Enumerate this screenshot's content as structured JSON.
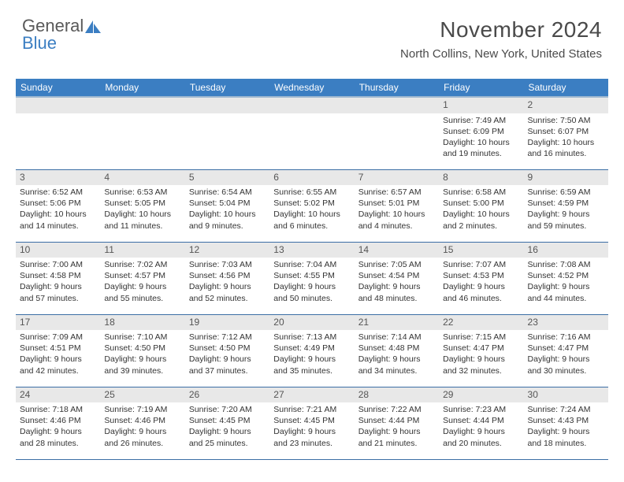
{
  "logo": {
    "text1": "General",
    "text2": "Blue",
    "icon_color": "#3b7ec2"
  },
  "title": "November 2024",
  "subtitle": "North Collins, New York, United States",
  "colors": {
    "header_bg": "#3b7ec2",
    "header_text": "#ffffff",
    "daynum_bg": "#e8e8e8",
    "row_border": "#3b6ea5",
    "subheader_border": "#9cb6cf"
  },
  "fonts": {
    "title_size": 28,
    "subtitle_size": 15,
    "th_size": 12,
    "daynum_size": 12,
    "body_size": 10.5
  },
  "day_headers": [
    "Sunday",
    "Monday",
    "Tuesday",
    "Wednesday",
    "Thursday",
    "Friday",
    "Saturday"
  ],
  "weeks": [
    [
      {
        "num": "",
        "lines": [
          "",
          "",
          "",
          ""
        ]
      },
      {
        "num": "",
        "lines": [
          "",
          "",
          "",
          ""
        ]
      },
      {
        "num": "",
        "lines": [
          "",
          "",
          "",
          ""
        ]
      },
      {
        "num": "",
        "lines": [
          "",
          "",
          "",
          ""
        ]
      },
      {
        "num": "",
        "lines": [
          "",
          "",
          "",
          ""
        ]
      },
      {
        "num": "1",
        "lines": [
          "Sunrise: 7:49 AM",
          "Sunset: 6:09 PM",
          "Daylight: 10 hours",
          "and 19 minutes."
        ]
      },
      {
        "num": "2",
        "lines": [
          "Sunrise: 7:50 AM",
          "Sunset: 6:07 PM",
          "Daylight: 10 hours",
          "and 16 minutes."
        ]
      }
    ],
    [
      {
        "num": "3",
        "lines": [
          "Sunrise: 6:52 AM",
          "Sunset: 5:06 PM",
          "Daylight: 10 hours",
          "and 14 minutes."
        ]
      },
      {
        "num": "4",
        "lines": [
          "Sunrise: 6:53 AM",
          "Sunset: 5:05 PM",
          "Daylight: 10 hours",
          "and 11 minutes."
        ]
      },
      {
        "num": "5",
        "lines": [
          "Sunrise: 6:54 AM",
          "Sunset: 5:04 PM",
          "Daylight: 10 hours",
          "and 9 minutes."
        ]
      },
      {
        "num": "6",
        "lines": [
          "Sunrise: 6:55 AM",
          "Sunset: 5:02 PM",
          "Daylight: 10 hours",
          "and 6 minutes."
        ]
      },
      {
        "num": "7",
        "lines": [
          "Sunrise: 6:57 AM",
          "Sunset: 5:01 PM",
          "Daylight: 10 hours",
          "and 4 minutes."
        ]
      },
      {
        "num": "8",
        "lines": [
          "Sunrise: 6:58 AM",
          "Sunset: 5:00 PM",
          "Daylight: 10 hours",
          "and 2 minutes."
        ]
      },
      {
        "num": "9",
        "lines": [
          "Sunrise: 6:59 AM",
          "Sunset: 4:59 PM",
          "Daylight: 9 hours",
          "and 59 minutes."
        ]
      }
    ],
    [
      {
        "num": "10",
        "lines": [
          "Sunrise: 7:00 AM",
          "Sunset: 4:58 PM",
          "Daylight: 9 hours",
          "and 57 minutes."
        ]
      },
      {
        "num": "11",
        "lines": [
          "Sunrise: 7:02 AM",
          "Sunset: 4:57 PM",
          "Daylight: 9 hours",
          "and 55 minutes."
        ]
      },
      {
        "num": "12",
        "lines": [
          "Sunrise: 7:03 AM",
          "Sunset: 4:56 PM",
          "Daylight: 9 hours",
          "and 52 minutes."
        ]
      },
      {
        "num": "13",
        "lines": [
          "Sunrise: 7:04 AM",
          "Sunset: 4:55 PM",
          "Daylight: 9 hours",
          "and 50 minutes."
        ]
      },
      {
        "num": "14",
        "lines": [
          "Sunrise: 7:05 AM",
          "Sunset: 4:54 PM",
          "Daylight: 9 hours",
          "and 48 minutes."
        ]
      },
      {
        "num": "15",
        "lines": [
          "Sunrise: 7:07 AM",
          "Sunset: 4:53 PM",
          "Daylight: 9 hours",
          "and 46 minutes."
        ]
      },
      {
        "num": "16",
        "lines": [
          "Sunrise: 7:08 AM",
          "Sunset: 4:52 PM",
          "Daylight: 9 hours",
          "and 44 minutes."
        ]
      }
    ],
    [
      {
        "num": "17",
        "lines": [
          "Sunrise: 7:09 AM",
          "Sunset: 4:51 PM",
          "Daylight: 9 hours",
          "and 42 minutes."
        ]
      },
      {
        "num": "18",
        "lines": [
          "Sunrise: 7:10 AM",
          "Sunset: 4:50 PM",
          "Daylight: 9 hours",
          "and 39 minutes."
        ]
      },
      {
        "num": "19",
        "lines": [
          "Sunrise: 7:12 AM",
          "Sunset: 4:50 PM",
          "Daylight: 9 hours",
          "and 37 minutes."
        ]
      },
      {
        "num": "20",
        "lines": [
          "Sunrise: 7:13 AM",
          "Sunset: 4:49 PM",
          "Daylight: 9 hours",
          "and 35 minutes."
        ]
      },
      {
        "num": "21",
        "lines": [
          "Sunrise: 7:14 AM",
          "Sunset: 4:48 PM",
          "Daylight: 9 hours",
          "and 34 minutes."
        ]
      },
      {
        "num": "22",
        "lines": [
          "Sunrise: 7:15 AM",
          "Sunset: 4:47 PM",
          "Daylight: 9 hours",
          "and 32 minutes."
        ]
      },
      {
        "num": "23",
        "lines": [
          "Sunrise: 7:16 AM",
          "Sunset: 4:47 PM",
          "Daylight: 9 hours",
          "and 30 minutes."
        ]
      }
    ],
    [
      {
        "num": "24",
        "lines": [
          "Sunrise: 7:18 AM",
          "Sunset: 4:46 PM",
          "Daylight: 9 hours",
          "and 28 minutes."
        ]
      },
      {
        "num": "25",
        "lines": [
          "Sunrise: 7:19 AM",
          "Sunset: 4:46 PM",
          "Daylight: 9 hours",
          "and 26 minutes."
        ]
      },
      {
        "num": "26",
        "lines": [
          "Sunrise: 7:20 AM",
          "Sunset: 4:45 PM",
          "Daylight: 9 hours",
          "and 25 minutes."
        ]
      },
      {
        "num": "27",
        "lines": [
          "Sunrise: 7:21 AM",
          "Sunset: 4:45 PM",
          "Daylight: 9 hours",
          "and 23 minutes."
        ]
      },
      {
        "num": "28",
        "lines": [
          "Sunrise: 7:22 AM",
          "Sunset: 4:44 PM",
          "Daylight: 9 hours",
          "and 21 minutes."
        ]
      },
      {
        "num": "29",
        "lines": [
          "Sunrise: 7:23 AM",
          "Sunset: 4:44 PM",
          "Daylight: 9 hours",
          "and 20 minutes."
        ]
      },
      {
        "num": "30",
        "lines": [
          "Sunrise: 7:24 AM",
          "Sunset: 4:43 PM",
          "Daylight: 9 hours",
          "and 18 minutes."
        ]
      }
    ]
  ]
}
